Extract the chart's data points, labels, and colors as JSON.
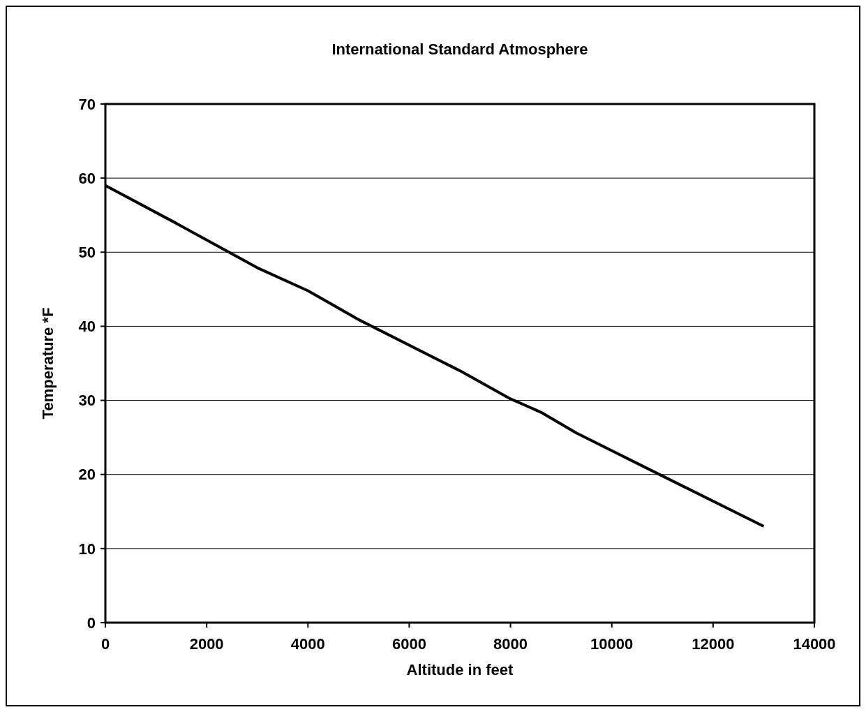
{
  "chart_data": {
    "type": "line",
    "title": "International Standard Atmosphere",
    "xlabel": "Altitude in feet",
    "ylabel": "Temperature *F",
    "x": [
      0,
      1400,
      3000,
      4000,
      5000,
      7000,
      8000,
      8600,
      9300,
      11000,
      13000
    ],
    "series": [
      {
        "color": "#000000",
        "values": [
          59,
          53.9,
          47.9,
          44.8,
          40.9,
          34,
          30.2,
          28.4,
          25.6,
          19.8,
          13
        ]
      }
    ],
    "xlim": [
      0,
      14000
    ],
    "xticks": [
      0,
      2000,
      4000,
      6000,
      8000,
      10000,
      12000,
      14000
    ],
    "ylim": [
      0,
      70
    ],
    "yticks": [
      0,
      10,
      20,
      30,
      40,
      50,
      60,
      70
    ],
    "grid": "y",
    "marker": "none",
    "line_style": "solid"
  }
}
